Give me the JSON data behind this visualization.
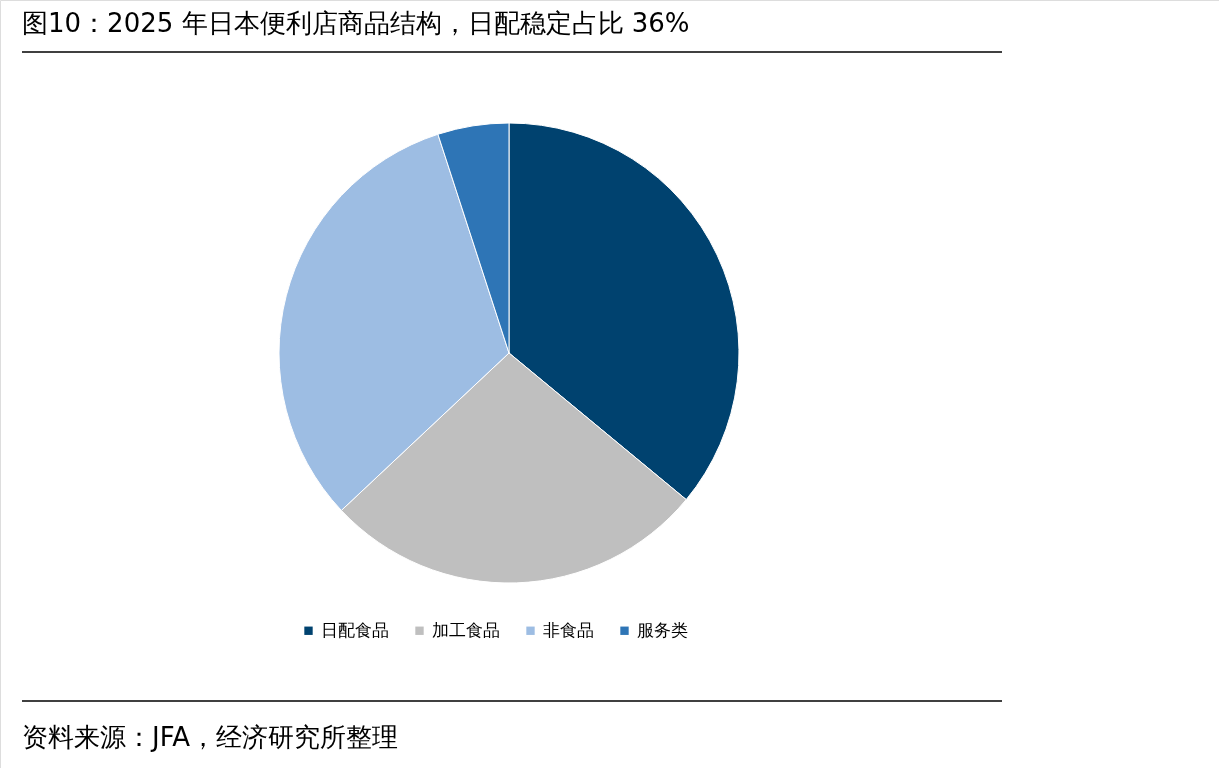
{
  "chart_data": {
    "type": "pie",
    "title": "图10：2025 年日本便利店商品结构，日配稳定占比 36%",
    "categories": [
      "日配食品",
      "加工食品",
      "非食品",
      "服务类"
    ],
    "values": [
      36,
      27,
      32,
      5
    ],
    "colors": [
      "#00426f",
      "#bfbfbf",
      "#9dbde3",
      "#2e75b6"
    ],
    "legend": "bottom",
    "annotations": [
      "资料来源：JFA，经济研究所整理"
    ]
  }
}
